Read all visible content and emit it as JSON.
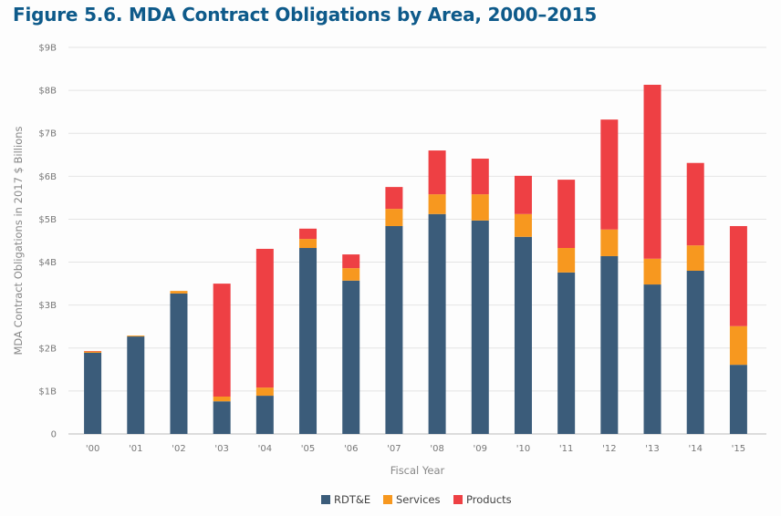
{
  "chart_data": {
    "type": "bar",
    "stacked": true,
    "title": "Figure 5.6.  MDA Contract Obligations by Area, 2000–2015",
    "xlabel": "Fiscal Year",
    "ylabel": "MDA Contract Obligations in 2017 $ Billions",
    "ylim": [
      0,
      9
    ],
    "yticks": [
      "0",
      "$1B",
      "$2B",
      "$3B",
      "$4B",
      "$5B",
      "$6B",
      "$7B",
      "$8B",
      "$9B"
    ],
    "grid": true,
    "legend_position": "bottom",
    "categories": [
      "'00",
      "'01",
      "'02",
      "'03",
      "'04",
      "'05",
      "'06",
      "'07",
      "'08",
      "'09",
      "'10",
      "'11",
      "'12",
      "'13",
      "'14",
      "'15"
    ],
    "series": [
      {
        "name": "RDT&E",
        "color": "#3b5c7a",
        "values": [
          1.89,
          2.27,
          3.27,
          0.76,
          0.89,
          4.33,
          3.57,
          4.84,
          5.12,
          4.97,
          4.59,
          3.76,
          4.14,
          3.48,
          3.8,
          1.61
        ]
      },
      {
        "name": "Services",
        "color": "#f7981f",
        "values": [
          0.03,
          0.02,
          0.06,
          0.11,
          0.19,
          0.21,
          0.29,
          0.4,
          0.46,
          0.61,
          0.53,
          0.57,
          0.62,
          0.6,
          0.59,
          0.9
        ]
      },
      {
        "name": "Products",
        "color": "#ee4044",
        "values": [
          0.01,
          0.0,
          0.0,
          2.63,
          3.23,
          0.24,
          0.32,
          0.51,
          1.02,
          0.83,
          0.89,
          1.59,
          2.56,
          4.05,
          1.92,
          2.33
        ]
      }
    ]
  }
}
